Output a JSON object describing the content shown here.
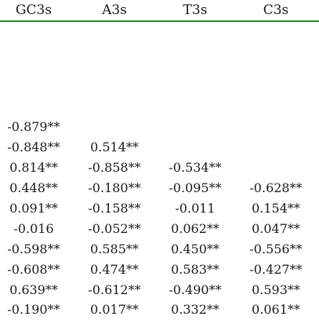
{
  "table": {
    "headers": [
      "GC3s",
      "A3s",
      "T3s",
      "C3s"
    ],
    "rows": [
      [
        "-0.879**",
        "",
        "",
        ""
      ],
      [
        "-0.848**",
        "0.514**",
        "",
        ""
      ],
      [
        "0.814**",
        "-0.858**",
        "-0.534**",
        ""
      ],
      [
        "0.448**",
        "-0.180**",
        "-0.095**",
        "-0.628**"
      ],
      [
        "0.091**",
        "-0.158**",
        "-0.011",
        "0.154**"
      ],
      [
        "-0.016",
        "-0.052**",
        "0.062**",
        "0.047**"
      ],
      [
        "-0.598**",
        "0.585**",
        "0.450**",
        "-0.556**"
      ],
      [
        "-0.608**",
        "0.474**",
        "0.583**",
        "-0.427**"
      ],
      [
        "0.639**",
        "-0.612**",
        "-0.490**",
        "0.593**"
      ],
      [
        "-0.190**",
        "0.017**",
        "0.332**",
        "0.061**"
      ]
    ]
  },
  "colors": {
    "rule": "#2e8b2e",
    "text": "#1a1a1a"
  }
}
